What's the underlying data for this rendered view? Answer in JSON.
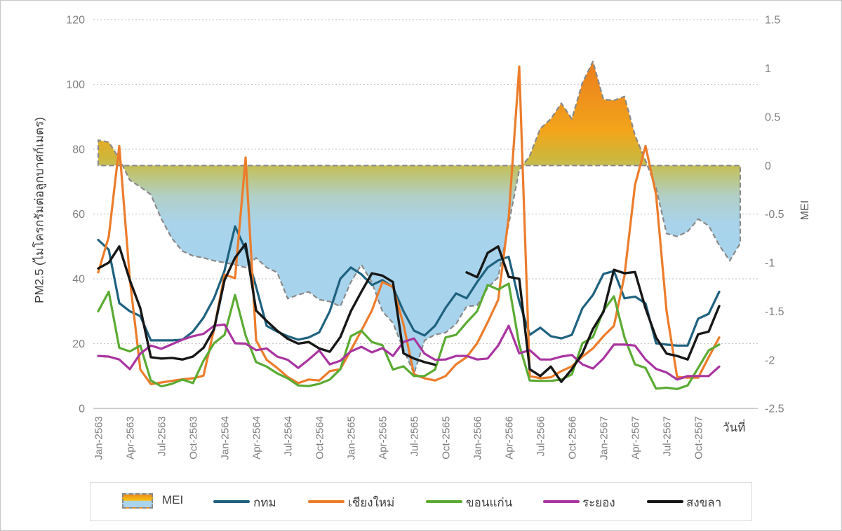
{
  "accent_colors": {
    "grid": "#CACACA",
    "axis_line": "#BFBFBF",
    "tick_text": "#7F7F7F",
    "area_border": "#8A8A8A",
    "legend_border": "#D9D9D9"
  },
  "titles": {
    "y_left": "PM2.5 (ไมโครกรัมต่อลูกบาศก์เมตร)",
    "y_right": "MEI",
    "x": "วันที่"
  },
  "legend": {
    "items": [
      {
        "label": "MEI",
        "type": "area",
        "swatch_gradient": [
          "#EF8C1A",
          "#F6C316",
          "#ABD4EC"
        ]
      },
      {
        "label": "กทม",
        "type": "line",
        "color": "#1F627F"
      },
      {
        "label": "เชียงใหม่",
        "type": "line",
        "color": "#EC7C2B"
      },
      {
        "label": "ขอนแก่น",
        "type": "line",
        "color": "#5BAB33"
      },
      {
        "label": "ระยอง",
        "type": "line",
        "color": "#A935A0"
      },
      {
        "label": "สงขลา",
        "type": "line",
        "color": "#171717"
      }
    ]
  },
  "chart_data": {
    "type": "line",
    "subtype": "dual-axis line chart with MEI area band (gradient fill, dashed outline)",
    "grid": "horizontal dotted lines on",
    "legend_position": "bottom",
    "x": [
      "Jan-2563",
      "Feb-2563",
      "Mar-2563",
      "Apr-2563",
      "May-2563",
      "Jun-2563",
      "Jul-2563",
      "Aug-2563",
      "Sep-2563",
      "Oct-2563",
      "Nov-2563",
      "Dec-2563",
      "Jan-2564",
      "Feb-2564",
      "Mar-2564",
      "Apr-2564",
      "May-2564",
      "Jun-2564",
      "Jul-2564",
      "Aug-2564",
      "Sep-2564",
      "Oct-2564",
      "Nov-2564",
      "Dec-2564",
      "Jan-2565",
      "Feb-2565",
      "Mar-2565",
      "Apr-2565",
      "May-2565",
      "Jun-2565",
      "Jul-2565",
      "Aug-2565",
      "Sep-2565",
      "Oct-2565",
      "Nov-2565",
      "Dec-2565",
      "Jan-2566",
      "Feb-2566",
      "Mar-2566",
      "Apr-2566",
      "May-2566",
      "Jun-2566",
      "Jul-2566",
      "Aug-2566",
      "Sep-2566",
      "Oct-2566",
      "Nov-2566",
      "Dec-2566",
      "Jan-2567",
      "Feb-2567",
      "Mar-2567",
      "Apr-2567",
      "May-2567",
      "Jun-2567",
      "Jul-2567",
      "Aug-2567",
      "Sep-2567",
      "Oct-2567",
      "Nov-2567",
      "Dec-2567",
      "Jan-2568",
      "Feb-2568"
    ],
    "x_tick_every": 3,
    "x_last_labeled_index": 57,
    "xlabel": "วันที่",
    "left_axis": {
      "label": "PM2.5 (ไมโครกรัมต่อลูกบาศก์เมตร)",
      "ticks": [
        0,
        20,
        40,
        60,
        80,
        100,
        120
      ],
      "range": [
        0,
        120
      ]
    },
    "right_axis": {
      "label": "MEI",
      "ticks": [
        "1.5",
        "1",
        "0.5",
        "0",
        "-0.5",
        "-1",
        "-1.5",
        "-2",
        "-2.5"
      ],
      "tick_values": [
        1.5,
        1,
        0.5,
        0,
        -0.5,
        -1,
        -1.5,
        -2,
        -2.5
      ],
      "range": [
        -2.5,
        1.5
      ]
    },
    "area_series": {
      "name": "MEI",
      "axis": "right",
      "stroke": "#8A8A8A",
      "stroke_style": "dashed",
      "gradient_stops": [
        [
          0,
          "#EB7A1E"
        ],
        [
          0.4,
          "#F2A51B"
        ],
        [
          0.54,
          "#CDB73C"
        ],
        [
          0.62,
          "#BFC473"
        ],
        [
          0.74,
          "#B1CFC6"
        ],
        [
          0.88,
          "#A9D3EA"
        ],
        [
          1,
          "#A8D3EC"
        ]
      ],
      "values": [
        0.26,
        0.24,
        0.07,
        -0.15,
        -0.22,
        -0.3,
        -0.55,
        -0.75,
        -0.88,
        -0.93,
        -0.95,
        -0.98,
        -1.0,
        -1.02,
        -1.05,
        -0.95,
        -1.05,
        -1.1,
        -1.37,
        -1.33,
        -1.3,
        -1.38,
        -1.4,
        -1.45,
        -1.2,
        -1.02,
        -1.2,
        -1.5,
        -1.62,
        -1.89,
        -2.14,
        -1.8,
        -1.74,
        -1.72,
        -1.63,
        -1.45,
        -1.44,
        -1.26,
        -1.15,
        -0.6,
        -0.05,
        0.1,
        0.38,
        0.48,
        0.64,
        0.48,
        0.85,
        1.07,
        0.68,
        0.67,
        0.71,
        0.31,
        0.05,
        -0.23,
        -0.7,
        -0.73,
        -0.68,
        -0.55,
        -0.62,
        -0.82,
        -0.98,
        -0.8
      ]
    },
    "series": [
      {
        "name": "กทม",
        "axis": "left",
        "color": "#1F627F",
        "width": 3.2,
        "values": [
          52,
          49,
          32.5,
          30,
          28.5,
          21,
          21,
          21,
          21.2,
          23.7,
          28,
          34,
          42.5,
          56.2,
          49,
          37.5,
          25.5,
          23.7,
          22.3,
          21.2,
          21.9,
          23.5,
          30,
          40,
          43.5,
          41.4,
          38.1,
          39.6,
          37.4,
          30,
          24,
          22.5,
          25.5,
          31,
          35.5,
          34,
          39,
          43.5,
          45.7,
          46.8,
          33,
          22.7,
          24.9,
          22.3,
          21.6,
          22.7,
          30.9,
          35,
          41.5,
          42.4,
          34,
          34.5,
          32.4,
          20.1,
          19.7,
          19.4,
          19.4,
          27.7,
          29.2,
          36
        ]
      },
      {
        "name": "เชียงใหม่",
        "axis": "left",
        "color": "#EC7C2B",
        "width": 3.2,
        "values": [
          42,
          53,
          81,
          40,
          12,
          7.5,
          8,
          8.5,
          9,
          9.3,
          10.1,
          24.4,
          41.3,
          40.2,
          77.4,
          21,
          15,
          12.5,
          9.7,
          7.8,
          8.9,
          8.6,
          11.5,
          12.1,
          18,
          24,
          30.2,
          39,
          37.5,
          26,
          10.5,
          9.3,
          8.6,
          10,
          13.6,
          15.8,
          20.1,
          26.6,
          33.5,
          59,
          105.5,
          10,
          9.3,
          9.6,
          11.5,
          13,
          16,
          18.5,
          22.3,
          25.5,
          41,
          69,
          81,
          66,
          30,
          9.7,
          9.5,
          9.5,
          15.8,
          21.9
        ]
      },
      {
        "name": "ขอนแก่น",
        "axis": "left",
        "color": "#5BAB33",
        "width": 3.2,
        "values": [
          30,
          36,
          18.7,
          17.6,
          19.4,
          8.6,
          6.8,
          7.6,
          8.9,
          7.8,
          14.7,
          20.1,
          22.7,
          35,
          22.5,
          14.3,
          12.9,
          10.8,
          9.3,
          7.1,
          6.9,
          7.6,
          8.9,
          12.1,
          22.3,
          24,
          20.5,
          19.5,
          12,
          13,
          10,
          10,
          12,
          21.9,
          22.7,
          26.5,
          30,
          38.1,
          36.7,
          38.5,
          19.7,
          8.6,
          8.5,
          8.5,
          8.9,
          10.5,
          20.1,
          22,
          30.2,
          34.6,
          21.9,
          13.6,
          12.5,
          6.1,
          6.4,
          6,
          7.1,
          12.5,
          17.9,
          19.7
        ]
      },
      {
        "name": "ระยอง",
        "axis": "left",
        "color": "#A935A0",
        "width": 3.2,
        "values": [
          16.2,
          16,
          15.1,
          12.1,
          16.9,
          19.4,
          18.4,
          19.8,
          21.2,
          22.3,
          23,
          25.5,
          25.9,
          20.1,
          20,
          18,
          18.5,
          16,
          15,
          12.5,
          15.1,
          17.9,
          13.6,
          14.7,
          17.6,
          19,
          17.3,
          18.6,
          16.2,
          20.5,
          21.6,
          16.9,
          15,
          15.1,
          16.2,
          16.2,
          15.1,
          15.4,
          19.4,
          25.5,
          17,
          18,
          15.1,
          15.1,
          16,
          16.5,
          13.6,
          12.3,
          15.4,
          19.7,
          19.7,
          19.4,
          15.1,
          12.2,
          11.1,
          8.9,
          10,
          10,
          10,
          12.9
        ]
      },
      {
        "name": "สงขลา",
        "axis": "left",
        "color": "#171717",
        "width": 3.4,
        "values": [
          43.2,
          45,
          50,
          39.6,
          30.9,
          15.8,
          15.4,
          15.6,
          15.1,
          16,
          18.7,
          24.4,
          39.6,
          46.5,
          50.8,
          30.2,
          27,
          24,
          21.5,
          20,
          20.5,
          18.5,
          17.5,
          22,
          30,
          36,
          41.7,
          41,
          39,
          17,
          15.4,
          14.3,
          13.5,
          null,
          null,
          42,
          40.5,
          48,
          50,
          40.6,
          40,
          12.1,
          10,
          12.9,
          8.2,
          12.1,
          17,
          24.5,
          29.8,
          42.8,
          41.7,
          42.1,
          30.9,
          21.9,
          16.9,
          16.2,
          15.1,
          22.9,
          23.7,
          31.6
        ]
      }
    ],
    "notes": "สงขลา series has missing data Oct-2565 and Nov-2565 (gap in black line). MEI area extends two months beyond the PM2.5 series."
  }
}
